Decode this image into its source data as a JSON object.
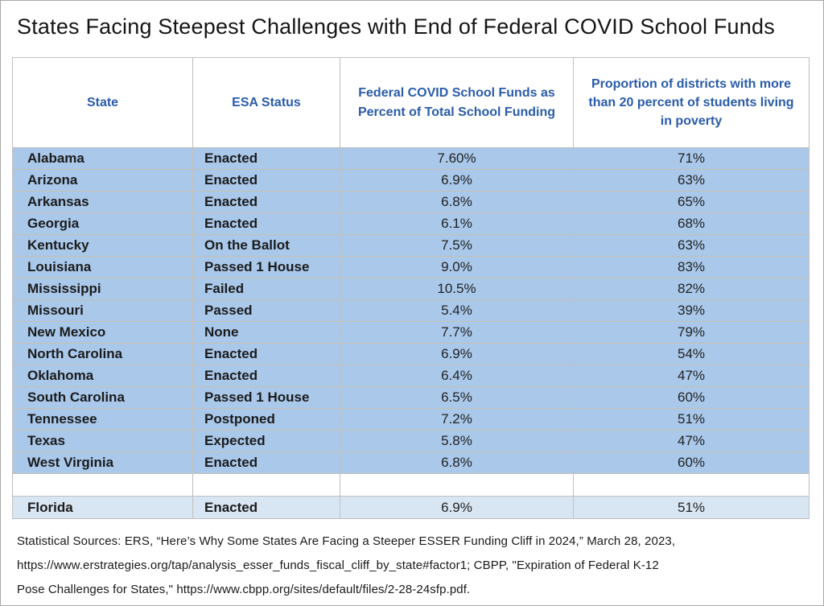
{
  "page": {
    "title": "States Facing Steepest Challenges with End of Federal COVID School Funds"
  },
  "table": {
    "columns": [
      {
        "label": "State"
      },
      {
        "label": "ESA Status"
      },
      {
        "label": "Federal COVID School Funds as Percent of Total School Funding"
      },
      {
        "label": "Proportion of districts with more than 20 percent of students living in poverty"
      }
    ],
    "rows": [
      {
        "state": "Alabama",
        "esa": "Enacted",
        "funds": "7.60%",
        "poverty": "71%"
      },
      {
        "state": "Arizona",
        "esa": "Enacted",
        "funds": "6.9%",
        "poverty": "63%"
      },
      {
        "state": "Arkansas",
        "esa": "Enacted",
        "funds": "6.8%",
        "poverty": "65%"
      },
      {
        "state": "Georgia",
        "esa": "Enacted",
        "funds": "6.1%",
        "poverty": "68%"
      },
      {
        "state": "Kentucky",
        "esa": "On the Ballot",
        "funds": "7.5%",
        "poverty": "63%"
      },
      {
        "state": "Louisiana",
        "esa": "Passed 1 House",
        "funds": "9.0%",
        "poverty": "83%"
      },
      {
        "state": "Mississippi",
        "esa": "Failed",
        "funds": "10.5%",
        "poverty": "82%"
      },
      {
        "state": "Missouri",
        "esa": "Passed",
        "funds": "5.4%",
        "poverty": "39%"
      },
      {
        "state": "New Mexico",
        "esa": "None",
        "funds": "7.7%",
        "poverty": "79%"
      },
      {
        "state": "North Carolina",
        "esa": "Enacted",
        "funds": "6.9%",
        "poverty": "54%"
      },
      {
        "state": "Oklahoma",
        "esa": "Enacted",
        "funds": "6.4%",
        "poverty": "47%"
      },
      {
        "state": "South Carolina",
        "esa": "Passed 1 House",
        "funds": "6.5%",
        "poverty": "60%"
      },
      {
        "state": "Tennessee",
        "esa": "Postponed",
        "funds": "7.2%",
        "poverty": "51%"
      },
      {
        "state": "Texas",
        "esa": "Expected",
        "funds": "5.8%",
        "poverty": "47%"
      },
      {
        "state": "West Virginia",
        "esa": "Enacted",
        "funds": "6.8%",
        "poverty": "60%"
      }
    ],
    "spacer_row": {
      "state": "",
      "esa": "",
      "funds": "",
      "poverty": ""
    },
    "highlight_row": {
      "state": "Florida",
      "esa": "Enacted",
      "funds": "6.9%",
      "poverty": "51%"
    }
  },
  "footer": {
    "lines": [
      "Statistical Sources: ERS, “Here’s Why Some States Are Facing a Steeper ESSER Funding Cliff in 2024,” March 28, 2023,",
      "https://www.erstrategies.org/tap/analysis_esser_funds_fiscal_cliff_by_state#factor1; CBPP, \"Expiration of Federal K-12",
      "Pose Challenges for States,\" https://www.cbpp.org/sites/default/files/2-28-24sfp.pdf."
    ]
  },
  "colors": {
    "header_text": "#2a5caa",
    "row_background": "#a9c8ea",
    "highlight_row_background": "#d8e5f3",
    "grid_line": "#c7c0b4",
    "header_border": "#bfbfbf"
  }
}
